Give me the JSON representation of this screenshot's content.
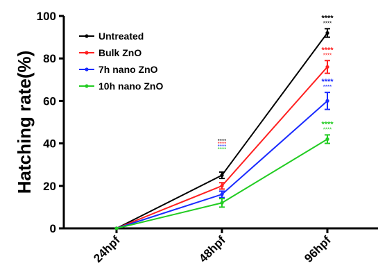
{
  "chart_data": {
    "type": "line",
    "ylabel": "Hatching rate(%)",
    "xlabel": "",
    "categories": [
      "24hpf",
      "48hpf",
      "96hpf"
    ],
    "ylim": [
      0,
      100
    ],
    "yticks": [
      0,
      20,
      40,
      60,
      80,
      100
    ],
    "legend_position": "top-left",
    "series": [
      {
        "name": "Untreated",
        "color": "#000000",
        "values": [
          0,
          25,
          92
        ],
        "errors": [
          0,
          1.5,
          2
        ],
        "sig": [
          null,
          {
            "top": "****",
            "bottom": "****"
          },
          {
            "top": "****",
            "bottom": "****"
          }
        ]
      },
      {
        "name": "Bulk ZnO",
        "color": "#ff2020",
        "values": [
          0,
          20,
          76
        ],
        "errors": [
          0,
          1.5,
          3
        ],
        "sig": [
          null,
          {
            "top": "****",
            "bottom": "****"
          },
          {
            "top": "****",
            "bottom": "****"
          }
        ]
      },
      {
        "name": "7h nano ZnO",
        "color": "#1a2bff",
        "values": [
          0,
          16,
          60
        ],
        "errors": [
          0,
          1.5,
          4
        ],
        "sig": [
          null,
          {
            "top": "****",
            "bottom": "****"
          },
          {
            "top": "****",
            "bottom": "****"
          }
        ]
      },
      {
        "name": "10h nano ZnO",
        "color": "#22cc22",
        "values": [
          0,
          12,
          42
        ],
        "errors": [
          0,
          2,
          2
        ],
        "sig": [
          null,
          {
            "top": "****",
            "bottom": "****"
          },
          {
            "top": "****",
            "bottom": "****"
          }
        ]
      }
    ]
  }
}
